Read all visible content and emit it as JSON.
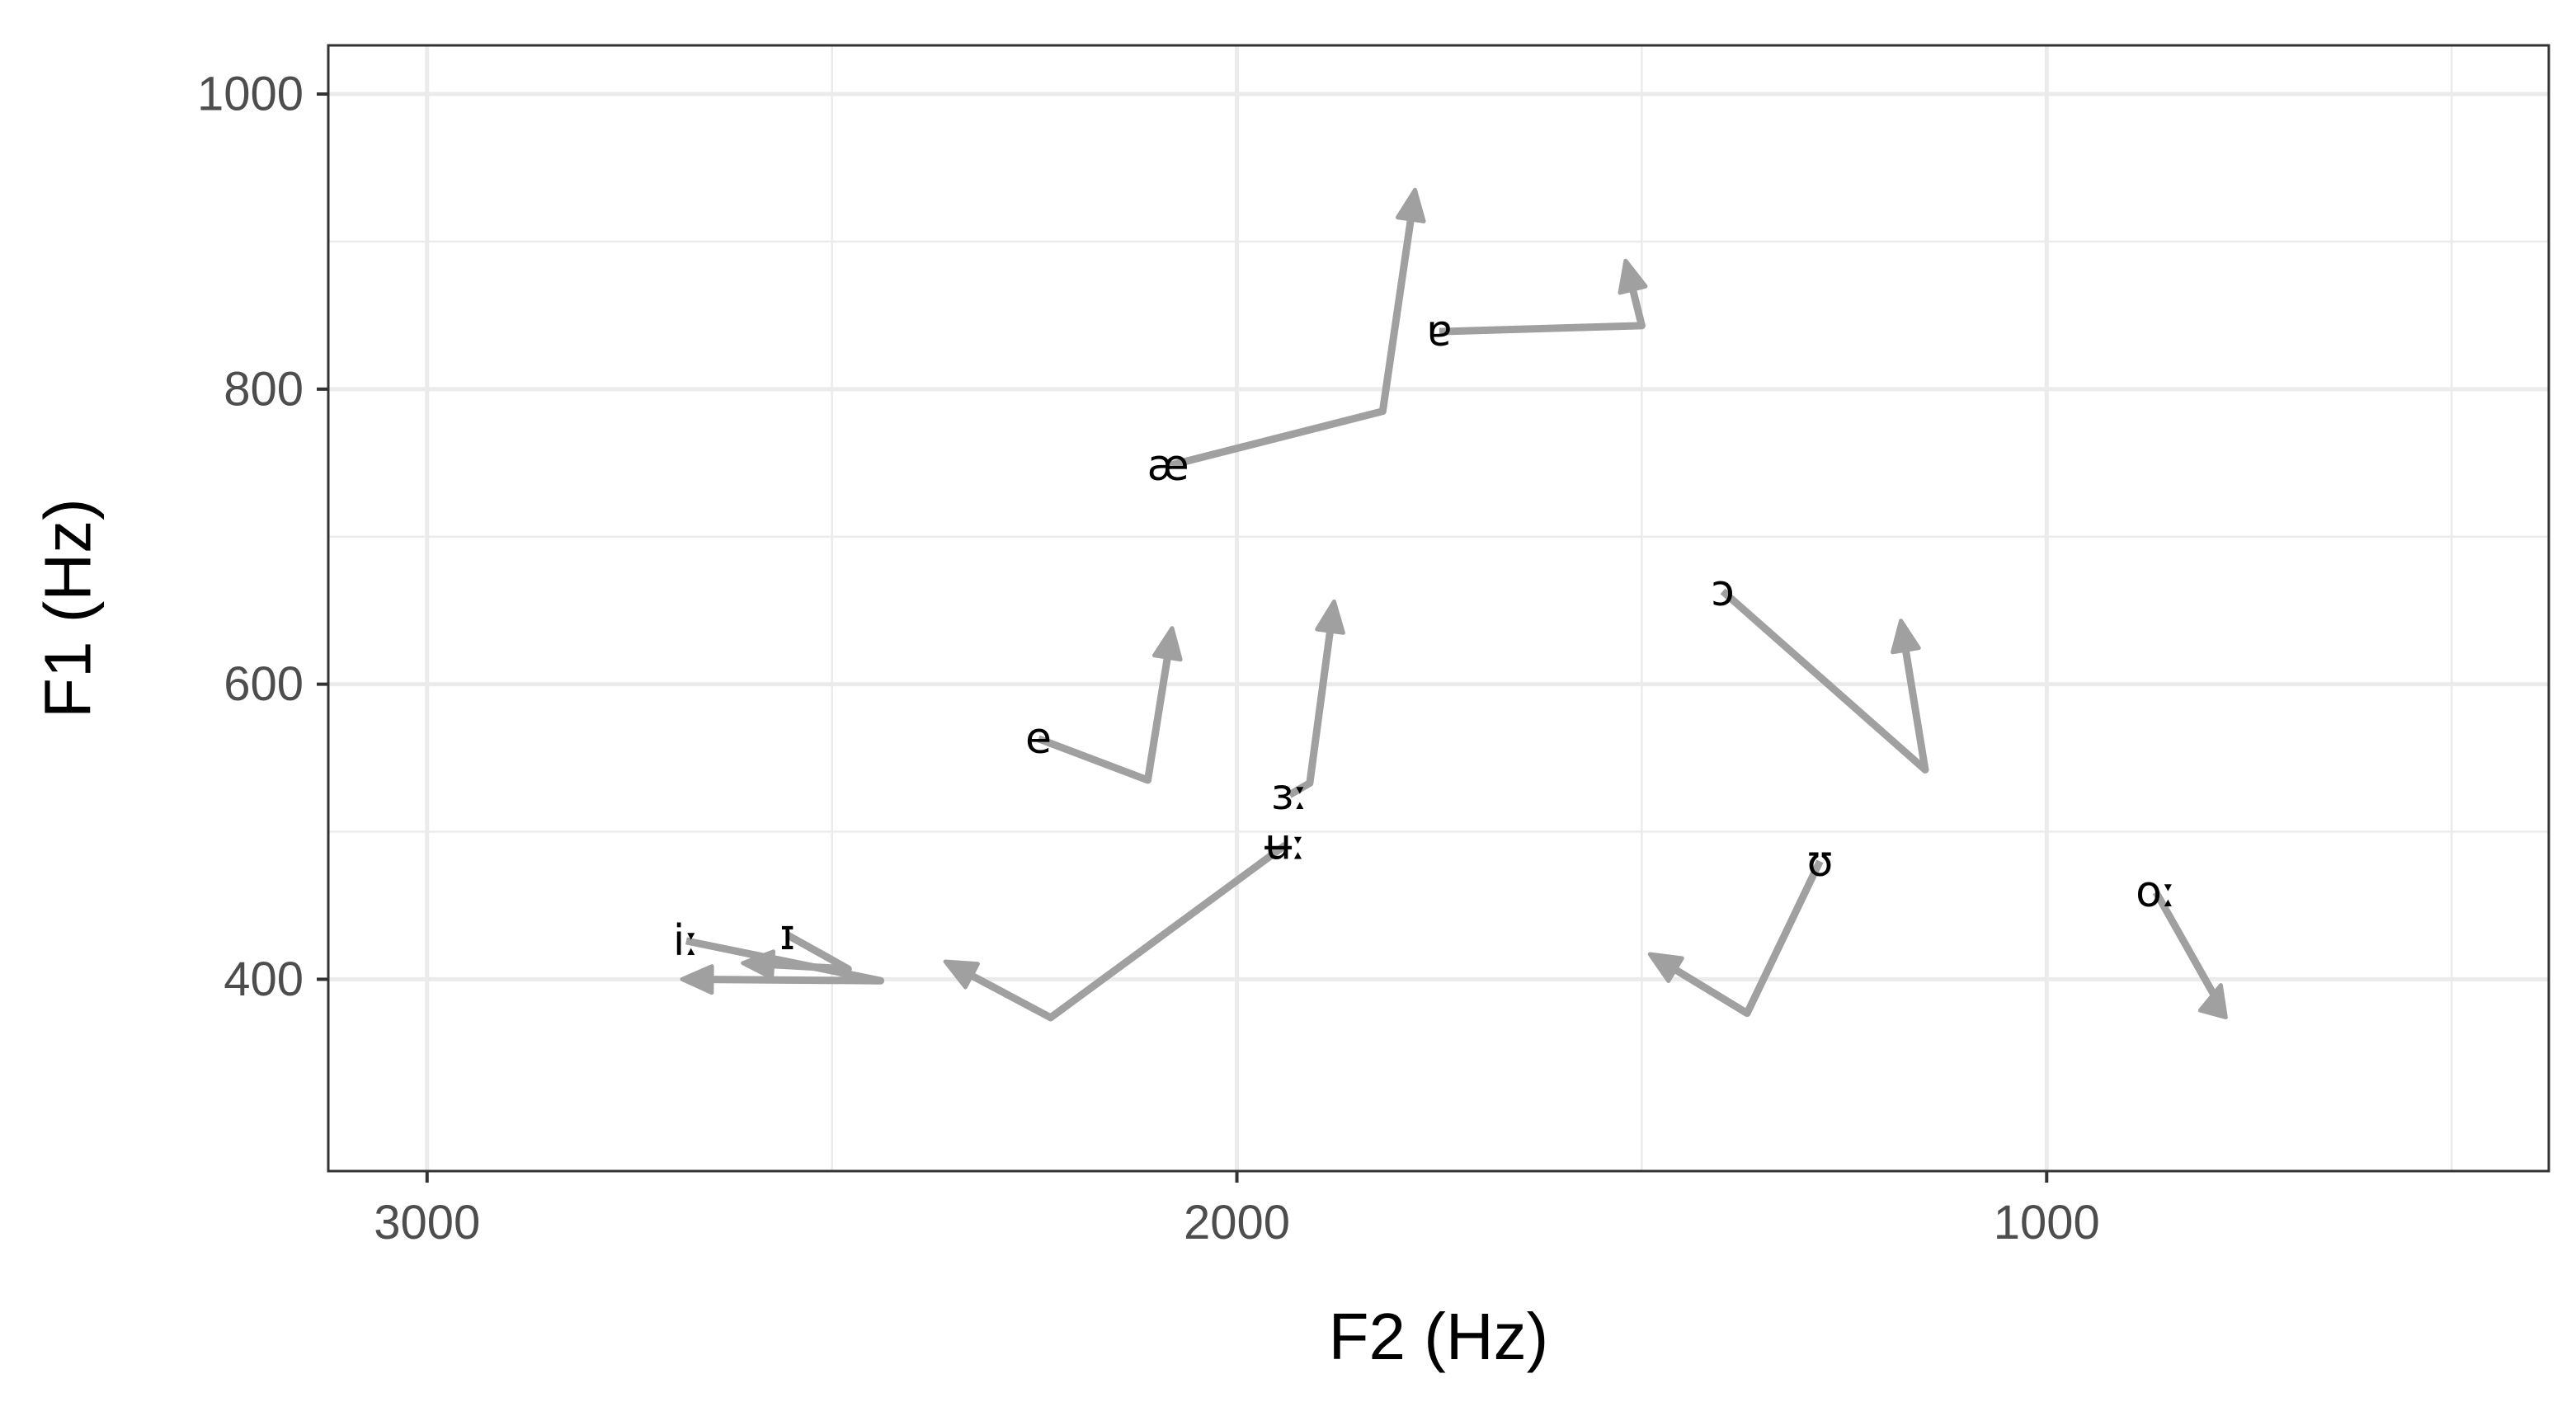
{
  "chart_data": {
    "type": "line",
    "subtype": "vowel-trajectory-plot",
    "xlabel": "F2 (Hz)",
    "ylabel": "F1 (Hz)",
    "x_reversed": true,
    "y_reversed": true,
    "xlim": [
      3122,
      380
    ],
    "ylim": [
      1033,
      270
    ],
    "x_ticks": [
      3000,
      2000,
      1000
    ],
    "y_ticks": [
      400,
      600,
      800,
      1000
    ],
    "x_minor": [
      2500,
      1500,
      500
    ],
    "y_minor": [
      500,
      700,
      900
    ],
    "grid": true,
    "line_color": "#a0a0a0",
    "series": [
      {
        "label": "iː",
        "points": [
          [
            2680,
            426
          ],
          [
            2440,
            399
          ],
          [
            2685,
            400
          ]
        ]
      },
      {
        "label": "ɪ",
        "points": [
          [
            2555,
            430
          ],
          [
            2480,
            407
          ],
          [
            2610,
            411
          ]
        ]
      },
      {
        "label": "ʉː",
        "points": [
          [
            1940,
            491
          ],
          [
            2230,
            374
          ],
          [
            2360,
            412
          ]
        ]
      },
      {
        "label": "ɜː",
        "points": [
          [
            1935,
            525
          ],
          [
            1910,
            533
          ],
          [
            1880,
            656
          ]
        ]
      },
      {
        "label": "e",
        "points": [
          [
            2245,
            563
          ],
          [
            2110,
            535
          ],
          [
            2080,
            638
          ]
        ]
      },
      {
        "label": "æ",
        "points": [
          [
            2085,
            748
          ],
          [
            1820,
            785
          ],
          [
            1780,
            935
          ]
        ]
      },
      {
        "label": "ɐ",
        "points": [
          [
            1750,
            839
          ],
          [
            1500,
            843
          ],
          [
            1520,
            887
          ]
        ]
      },
      {
        "label": "ʊ",
        "points": [
          [
            1280,
            480
          ],
          [
            1370,
            377
          ],
          [
            1490,
            417
          ]
        ]
      },
      {
        "label": "ɔ",
        "points": [
          [
            1400,
            663
          ],
          [
            1150,
            542
          ],
          [
            1180,
            643
          ]
        ]
      },
      {
        "label": "oː",
        "points": [
          [
            865,
            459
          ],
          [
            790,
            386
          ],
          [
            785,
            396
          ]
        ]
      }
    ]
  }
}
